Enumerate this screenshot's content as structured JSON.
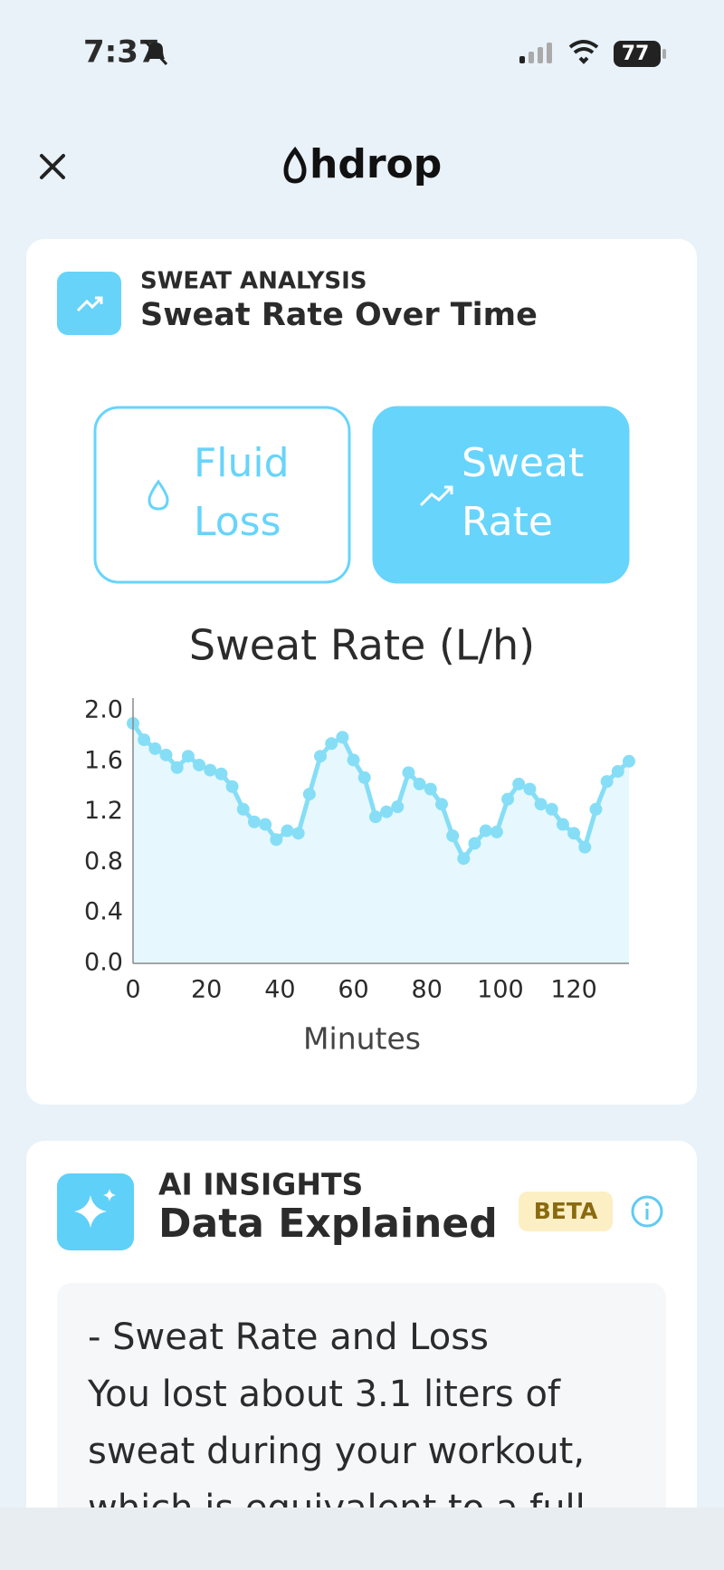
{
  "status_bar": {
    "time": "7:37",
    "battery": "77"
  },
  "header": {
    "logo": "hdrop"
  },
  "sweat_card": {
    "eyebrow": "SWEAT ANALYSIS",
    "title": "Sweat Rate Over Time",
    "tabs": [
      {
        "label_lines": [
          "Fluid",
          "Loss"
        ],
        "active": false
      },
      {
        "label_lines": [
          "Sweat",
          "Rate"
        ],
        "active": true
      }
    ]
  },
  "chart_data": {
    "type": "line",
    "title": "Sweat Rate (L/h)",
    "x_label": "Minutes",
    "x": [
      0,
      3,
      6,
      9,
      12,
      15,
      18,
      21,
      24,
      27,
      30,
      33,
      36,
      39,
      42,
      45,
      48,
      51,
      54,
      57,
      60,
      63,
      66,
      69,
      72,
      75,
      78,
      81,
      84,
      87,
      90,
      93,
      96,
      99,
      102,
      105,
      108,
      111,
      114,
      117,
      120,
      123,
      126,
      129,
      132,
      135
    ],
    "values": [
      1.9,
      1.77,
      1.7,
      1.65,
      1.55,
      1.64,
      1.57,
      1.53,
      1.5,
      1.4,
      1.22,
      1.12,
      1.1,
      0.98,
      1.05,
      1.03,
      1.34,
      1.64,
      1.74,
      1.79,
      1.61,
      1.47,
      1.16,
      1.2,
      1.24,
      1.51,
      1.42,
      1.38,
      1.26,
      1.01,
      0.83,
      0.95,
      1.05,
      1.04,
      1.3,
      1.42,
      1.38,
      1.26,
      1.22,
      1.1,
      1.03,
      0.92,
      1.22,
      1.44,
      1.52,
      1.6
    ],
    "color": "#86def6",
    "fill": "#e6f8fd",
    "xlim": [
      0,
      135
    ],
    "ylim": [
      0,
      2
    ],
    "xticks": [
      0,
      20,
      40,
      60,
      80,
      100,
      120
    ],
    "yticks": [
      {
        "value": 0,
        "label": "0.0"
      },
      0.4,
      0.8,
      1.2,
      1.6,
      {
        "value": 2,
        "label": "2.0"
      }
    ],
    "grid": false
  },
  "insights_card": {
    "eyebrow": "AI INSIGHTS",
    "title": "Data Explained",
    "badge": "BETA",
    "lines": [
      "- Sweat Rate and Loss",
      "You lost about 3.1 liters of",
      "sweat during your workout,",
      "which is equivalent to a full"
    ]
  }
}
